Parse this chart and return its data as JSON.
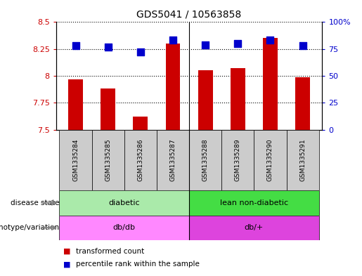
{
  "title": "GDS5041 / 10563858",
  "samples": [
    "GSM1335284",
    "GSM1335285",
    "GSM1335286",
    "GSM1335287",
    "GSM1335288",
    "GSM1335289",
    "GSM1335290",
    "GSM1335291"
  ],
  "transformed_count": [
    7.97,
    7.88,
    7.62,
    8.3,
    8.05,
    8.07,
    8.35,
    7.99
  ],
  "percentile_rank": [
    78,
    77,
    72,
    83,
    79,
    80,
    83,
    78
  ],
  "ylim_left": [
    7.5,
    8.5
  ],
  "ylim_right": [
    0,
    100
  ],
  "yticks_left": [
    7.5,
    7.75,
    8.0,
    8.25,
    8.5
  ],
  "yticks_right": [
    0,
    25,
    50,
    75,
    100
  ],
  "ytick_labels_left": [
    "7.5",
    "7.75",
    "8",
    "8.25",
    "8.5"
  ],
  "ytick_labels_right": [
    "0",
    "25",
    "50",
    "75",
    "100%"
  ],
  "disease_state": [
    {
      "label": "diabetic",
      "start": 0,
      "end": 4,
      "color": "#AAEAAA"
    },
    {
      "label": "lean non-diabetic",
      "start": 4,
      "end": 8,
      "color": "#44DD44"
    }
  ],
  "genotype": [
    {
      "label": "db/db",
      "start": 0,
      "end": 4,
      "color": "#FF88FF"
    },
    {
      "label": "db/+",
      "start": 4,
      "end": 8,
      "color": "#DD44DD"
    }
  ],
  "bar_color": "#CC0000",
  "dot_color": "#0000CC",
  "left_tick_color": "#CC0000",
  "right_tick_color": "#0000CC",
  "legend_items": [
    {
      "label": "transformed count",
      "color": "#CC0000"
    },
    {
      "label": "percentile rank within the sample",
      "color": "#0000CC"
    }
  ],
  "bar_width": 0.45,
  "dot_size": 45,
  "group_separator": 4,
  "sample_bg_color": "#CCCCCC",
  "plot_bg": "#FFFFFF",
  "fig_bg": "#FFFFFF"
}
